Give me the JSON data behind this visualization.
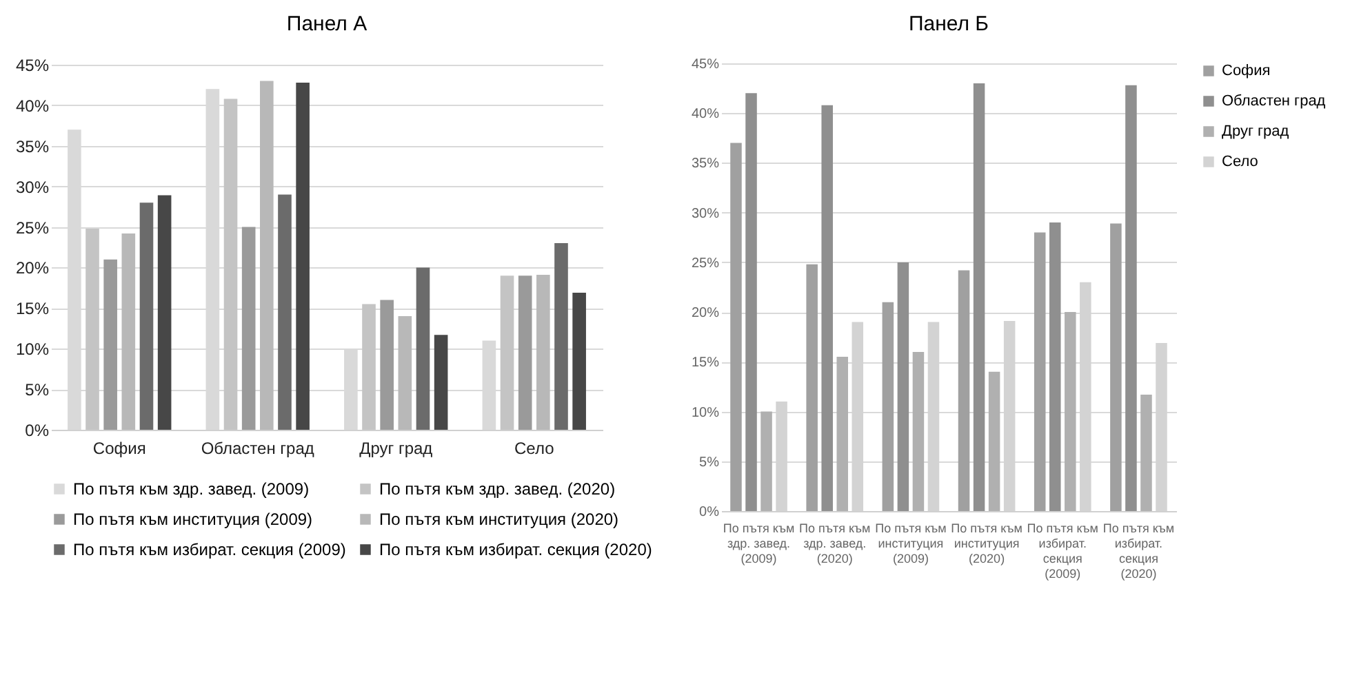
{
  "chart_data": [
    {
      "type": "bar",
      "title": "Панел А",
      "categories": [
        "София",
        "Областен град",
        "Друг град",
        "Село"
      ],
      "series": [
        {
          "name": "По пътя към здр. завед. (2009)",
          "color": "#d9d9d9",
          "values": [
            37,
            42,
            10,
            11
          ]
        },
        {
          "name": "По пътя към здр. завед. (2020)",
          "color": "#c4c4c4",
          "values": [
            24.8,
            40.8,
            15.5,
            19
          ]
        },
        {
          "name": "По пътя към институция (2009)",
          "color": "#9a9a9a",
          "values": [
            21,
            25,
            16,
            19
          ]
        },
        {
          "name": "По пътя към институция (2020)",
          "color": "#b8b8b8",
          "values": [
            24.2,
            43,
            14,
            19.1
          ]
        },
        {
          "name": "По пътя към избират. секция (2009)",
          "color": "#6b6b6b",
          "values": [
            28,
            29,
            20,
            23
          ]
        },
        {
          "name": "По пътя към избират. секция (2020)",
          "color": "#474747",
          "values": [
            28.9,
            42.8,
            11.7,
            16.9
          ]
        }
      ],
      "ylim": [
        0,
        45
      ],
      "yticks": [
        {
          "value": 0,
          "label": "0%"
        },
        {
          "value": 5,
          "label": "5%"
        },
        {
          "value": 10,
          "label": "10%"
        },
        {
          "value": 15,
          "label": "15%"
        },
        {
          "value": 20,
          "label": "20%"
        },
        {
          "value": 25,
          "label": "25%"
        },
        {
          "value": 30,
          "label": "30%"
        },
        {
          "value": 35,
          "label": "35%"
        },
        {
          "value": 40,
          "label": "40%"
        },
        {
          "value": 45,
          "label": "45%"
        }
      ],
      "grid": "y",
      "legend": "bottom"
    },
    {
      "type": "bar",
      "title": "Панел Б",
      "categories": [
        "По пътя към здр. завед. (2009)",
        "По пътя към здр. завед. (2020)",
        "По пътя към институция (2009)",
        "По пътя към институция (2020)",
        "По пътя към избират. секция (2009)",
        "По пътя към избират. секция (2020)"
      ],
      "series": [
        {
          "name": "София",
          "color": "#a0a0a0",
          "values": [
            37,
            24.8,
            21,
            24.2,
            28,
            28.9
          ]
        },
        {
          "name": "Областен град",
          "color": "#8f8f8f",
          "values": [
            42,
            40.8,
            25,
            43,
            29,
            42.8
          ]
        },
        {
          "name": "Друг град",
          "color": "#b0b0b0",
          "values": [
            10,
            15.5,
            16,
            14,
            20,
            11.7
          ]
        },
        {
          "name": "Село",
          "color": "#d3d3d3",
          "values": [
            11,
            19,
            19,
            19.1,
            23,
            16.9
          ]
        }
      ],
      "ylim": [
        0,
        45
      ],
      "yticks": [
        {
          "value": 0,
          "label": "0%"
        },
        {
          "value": 5,
          "label": "5%"
        },
        {
          "value": 10,
          "label": "10%"
        },
        {
          "value": 15,
          "label": "15%"
        },
        {
          "value": 20,
          "label": "20%"
        },
        {
          "value": 25,
          "label": "25%"
        },
        {
          "value": 30,
          "label": "30%"
        },
        {
          "value": 35,
          "label": "35%"
        },
        {
          "value": 40,
          "label": "40%"
        },
        {
          "value": 45,
          "label": "45%"
        }
      ],
      "grid": "y",
      "legend": "right"
    }
  ]
}
